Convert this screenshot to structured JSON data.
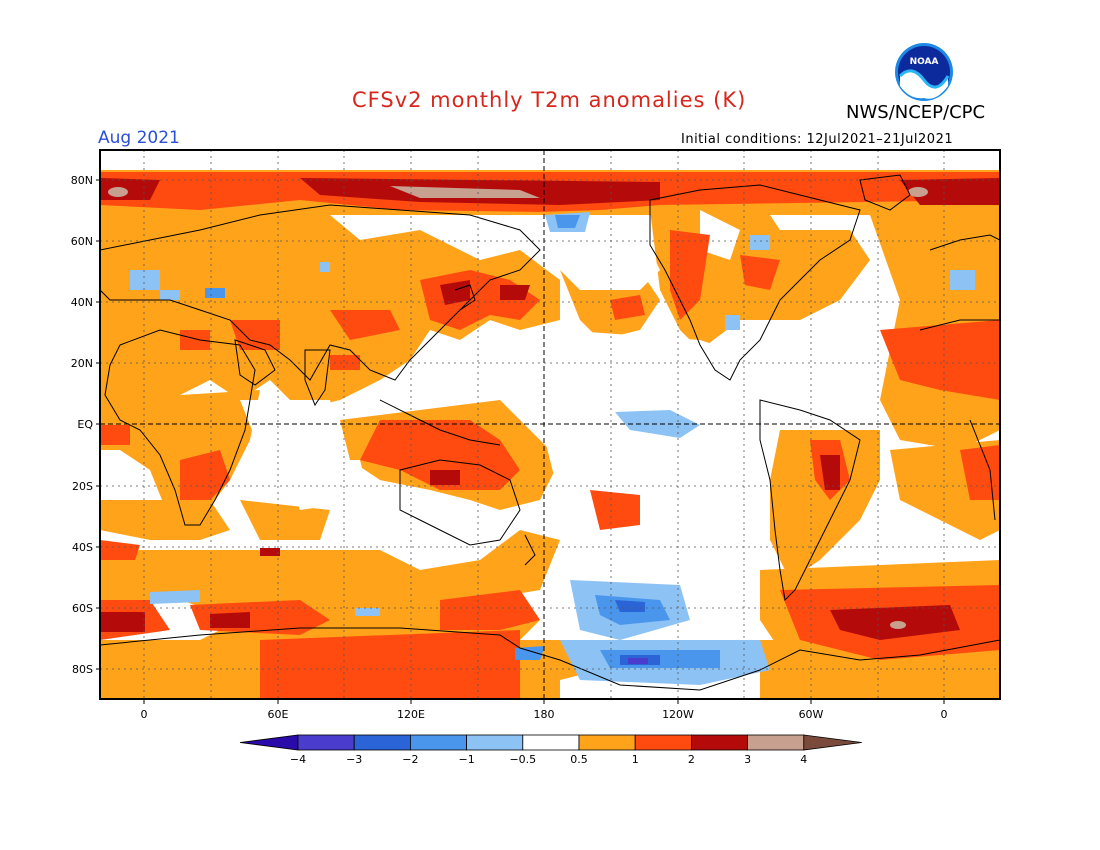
{
  "header": {
    "title": "CFSv2 monthly T2m anomalies (K)",
    "agency": "NWS/NCEP/CPC",
    "month": "Aug 2021",
    "initial_conditions": "Initial conditions: 12Jul2021–21Jul2021",
    "logo_icon": "noaa-logo-icon"
  },
  "axes": {
    "lat_labels": [
      "80N",
      "60N",
      "40N",
      "20N",
      "EQ",
      "20S",
      "40S",
      "60S",
      "80S"
    ],
    "lon_labels": [
      "0",
      "60E",
      "120E",
      "180",
      "120W",
      "60W",
      "0"
    ]
  },
  "colorbar": {
    "ticks": [
      "−4",
      "−3",
      "−2",
      "−1",
      "−0.5",
      "0.5",
      "1",
      "2",
      "3",
      "4"
    ],
    "colors": [
      "#2a0aa8",
      "#4a3ccc",
      "#2a64d6",
      "#4a96ec",
      "#8cc2f4",
      "#ffffff",
      "#ffa31a",
      "#ff4a10",
      "#b40a0a",
      "#c8a090",
      "#7a4a3a"
    ]
  },
  "palette": {
    "title_color": "#d8261c",
    "month_color": "#2a4fd8",
    "land_line": "#000000"
  }
}
